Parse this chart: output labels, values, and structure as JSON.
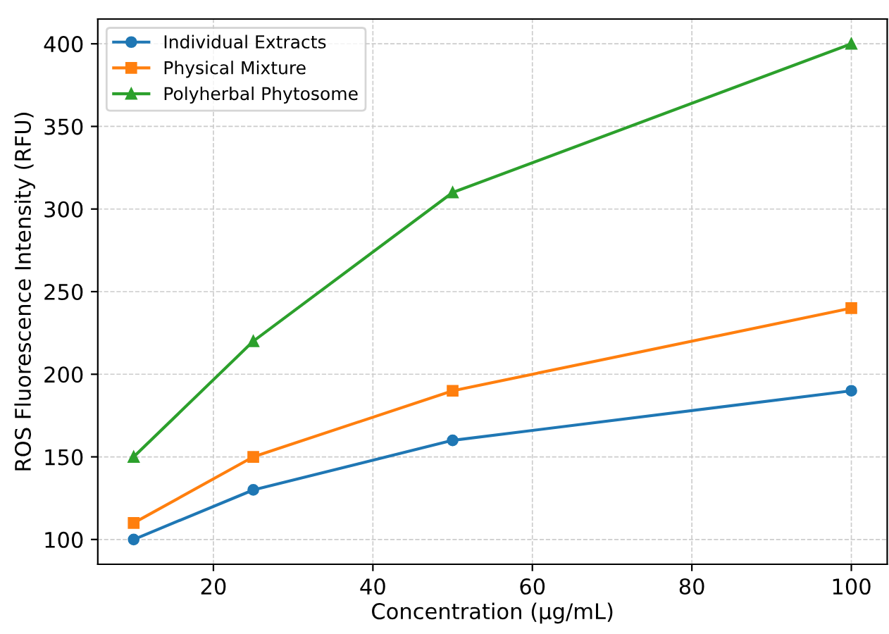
{
  "chart_data": {
    "type": "line",
    "xlabel": "Concentration (µg/mL)",
    "ylabel": "ROS Fluorescence Intensity (RFU)",
    "x": [
      10,
      25,
      50,
      100
    ],
    "series": [
      {
        "name": "Individual Extracts",
        "color": "#1f77b4",
        "marker": "circle",
        "values": [
          100,
          130,
          160,
          190
        ]
      },
      {
        "name": "Physical Mixture",
        "color": "#ff7f0e",
        "marker": "square",
        "values": [
          110,
          150,
          190,
          240
        ]
      },
      {
        "name": "Polyherbal Phytosome",
        "color": "#2ca02c",
        "marker": "triangle",
        "values": [
          150,
          220,
          310,
          400
        ]
      }
    ],
    "xlim": [
      5.5,
      104.5
    ],
    "ylim": [
      85,
      415
    ],
    "xticks": [
      20,
      40,
      60,
      80,
      100
    ],
    "yticks": [
      100,
      150,
      200,
      250,
      300,
      350,
      400
    ],
    "grid": true,
    "legend": "top left",
    "line_style": "solid"
  }
}
